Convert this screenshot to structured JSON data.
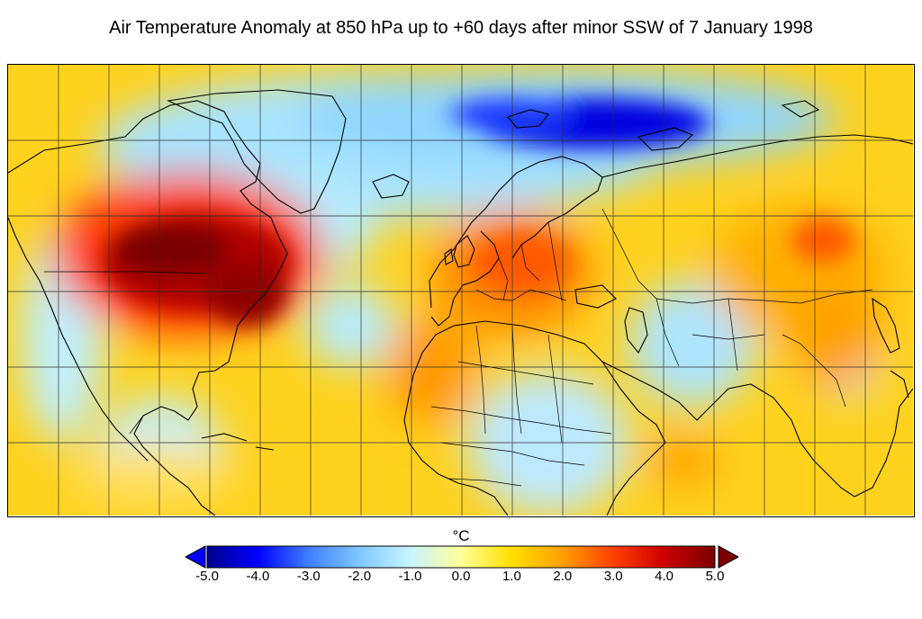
{
  "title": "Air Temperature Anomaly at 850 hPa up to +60 days after minor SSW of 7 January 1998",
  "colorbar": {
    "unit": "°C",
    "min": -5.0,
    "max": 5.0,
    "ticks": [
      "-5.0",
      "-4.0",
      "-3.0",
      "-2.0",
      "-1.0",
      "0.0",
      "1.0",
      "2.0",
      "3.0",
      "4.0",
      "5.0"
    ],
    "extend": "both",
    "colors": [
      "#00008a",
      "#0000ff",
      "#3f7fff",
      "#7fc8ff",
      "#c8f4ff",
      "#ffff99",
      "#ffe000",
      "#ff9f00",
      "#ff4000",
      "#cc0000",
      "#7a0000"
    ]
  },
  "map": {
    "projection": "equirectangular",
    "region": "North America, North Atlantic, Europe, Africa and Asia",
    "gridlines": true,
    "coastlines": true,
    "country_borders": true
  }
}
